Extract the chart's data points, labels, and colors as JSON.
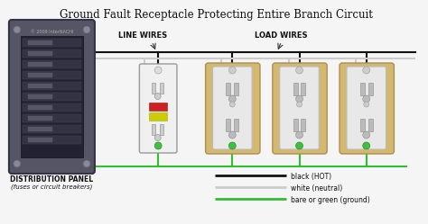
{
  "title": "Ground Fault Receptacle Protecting Entire Branch Circuit",
  "title_fontsize": 8.5,
  "bg_color": "#f5f5f5",
  "fig_width": 4.74,
  "fig_height": 2.49,
  "dpi": 100,
  "legend_items": [
    {
      "label": "black (HOT)",
      "color": "#111111"
    },
    {
      "label": "white (neutral)",
      "color": "#cccccc"
    },
    {
      "label": "bare or green (ground)",
      "color": "#33bb33"
    }
  ],
  "panel_label1": "DISTRIBUTION PANEL",
  "panel_label2": "(fuses or circuit breakers)",
  "line_wires_label": "LINE WIRES",
  "load_wires_label": "LOAD WIRES",
  "wire_black": "#111111",
  "wire_white": "#cccccc",
  "wire_green": "#33bb33",
  "gfci_color": "#f0f0f0",
  "outlet_color": "#d4b870",
  "outlet_face": "#e8e8e8",
  "panel_face": "#555566",
  "panel_edge": "#333344"
}
